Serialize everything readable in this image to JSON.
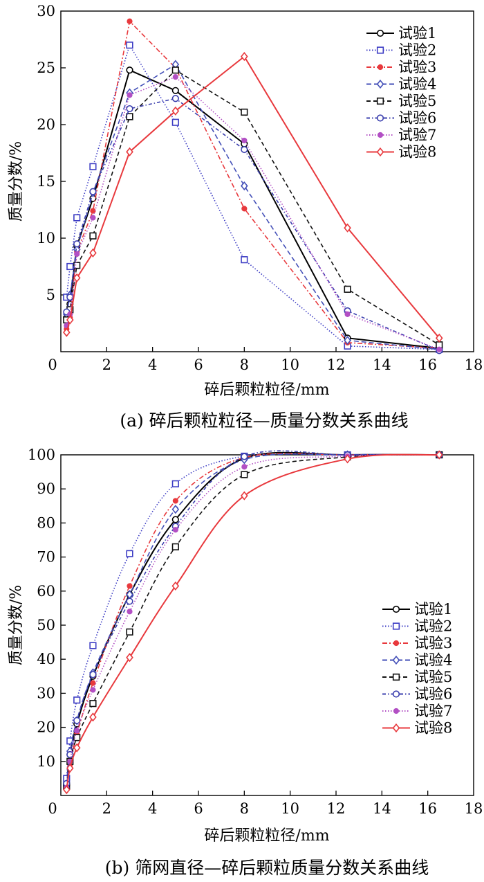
{
  "chart_data": [
    {
      "type": "line",
      "caption": "(a)  碎后颗粒粒径—质量分数关系曲线",
      "xlabel": "碎后颗粒粒径/mm",
      "ylabel": "质量分数/%",
      "xlim": [
        0,
        18
      ],
      "ylim": [
        0,
        30
      ],
      "xticks": [
        0,
        2,
        4,
        6,
        8,
        10,
        12,
        14,
        16,
        18
      ],
      "yticks": [
        5,
        10,
        15,
        20,
        25,
        30
      ],
      "legend_position": "top-right",
      "series": [
        {
          "name": "试验1",
          "color": "#000000",
          "dash": "",
          "marker": "circle",
          "x": [
            0.25,
            0.4,
            0.7,
            1.4,
            3,
            5,
            8,
            12.5,
            16.5
          ],
          "y": [
            3.0,
            4.2,
            9.3,
            13.5,
            24.8,
            23.0,
            18.3,
            1.2,
            0.3
          ]
        },
        {
          "name": "试验2",
          "color": "#3d3dc4",
          "dash": "1.5,2.5",
          "marker": "square",
          "x": [
            0.25,
            0.4,
            0.7,
            1.4,
            3,
            5,
            8,
            12.5,
            16.5
          ],
          "y": [
            4.8,
            7.5,
            11.8,
            16.3,
            27.0,
            20.2,
            8.1,
            0.5,
            0.2
          ]
        },
        {
          "name": "试验3",
          "color": "#e8393d",
          "dash": "7,3,2,3",
          "marker": "dot",
          "x": [
            0.25,
            0.4,
            0.7,
            1.4,
            3,
            5,
            8,
            12.5,
            16.5
          ],
          "y": [
            2.0,
            3.0,
            8.8,
            12.4,
            29.1,
            25.0,
            12.6,
            0.8,
            0.3
          ]
        },
        {
          "name": "试验4",
          "color": "#4450b8",
          "dash": "7,4",
          "marker": "diamond",
          "x": [
            0.25,
            0.4,
            0.7,
            1.4,
            3,
            5,
            8,
            12.5,
            16.5
          ],
          "y": [
            3.3,
            5.0,
            9.0,
            14.0,
            22.8,
            25.3,
            14.6,
            1.0,
            0.2
          ]
        },
        {
          "name": "试验5",
          "color": "#111111",
          "dash": "6,4",
          "marker": "square",
          "x": [
            0.25,
            0.4,
            0.7,
            1.4,
            3,
            5,
            8,
            12.5,
            16.5
          ],
          "y": [
            2.8,
            3.7,
            7.6,
            10.2,
            20.7,
            24.8,
            21.1,
            5.5,
            0.6
          ]
        },
        {
          "name": "试验6",
          "color": "#3b3fae",
          "dash": "5,3,1.5,3",
          "marker": "circle",
          "x": [
            0.25,
            0.4,
            0.7,
            1.4,
            3,
            5,
            8,
            12.5,
            16.5
          ],
          "y": [
            3.5,
            4.8,
            9.5,
            14.1,
            21.4,
            22.3,
            17.8,
            3.6,
            0.1
          ]
        },
        {
          "name": "试验7",
          "color": "#b24fc4",
          "dash": "1.5,2.5",
          "marker": "dot",
          "x": [
            0.25,
            0.4,
            0.7,
            1.4,
            3,
            5,
            8,
            12.5,
            16.5
          ],
          "y": [
            2.3,
            3.3,
            8.6,
            11.8,
            22.6,
            24.2,
            18.6,
            3.3,
            0.2
          ]
        },
        {
          "name": "试验8",
          "color": "#e8393d",
          "dash": "",
          "marker": "diamond",
          "x": [
            0.25,
            0.4,
            0.7,
            1.4,
            3,
            5,
            8,
            12.5,
            16.5
          ],
          "y": [
            1.7,
            2.8,
            6.5,
            8.7,
            17.6,
            21.2,
            26.0,
            10.9,
            1.2
          ]
        }
      ]
    },
    {
      "type": "line",
      "caption": "(b)  筛网直径—碎后颗粒质量分数关系曲线",
      "xlabel": "碎后颗粒粒径/mm",
      "ylabel": "质量分数/%",
      "xlim": [
        0,
        18
      ],
      "ylim": [
        0,
        100
      ],
      "xticks": [
        0,
        2,
        4,
        6,
        8,
        10,
        12,
        14,
        16,
        18
      ],
      "yticks": [
        10,
        20,
        30,
        40,
        50,
        60,
        70,
        80,
        90,
        100
      ],
      "legend_position": "bottom-right",
      "series": [
        {
          "name": "试验1",
          "color": "#000000",
          "dash": "",
          "marker": "circle",
          "x": [
            0.25,
            0.4,
            0.7,
            1.4,
            3,
            5,
            8,
            12.5,
            16.5
          ],
          "y": [
            3,
            12,
            21,
            35,
            59,
            81,
            99,
            100,
            100
          ]
        },
        {
          "name": "试验2",
          "color": "#3d3dc4",
          "dash": "1.5,2.5",
          "marker": "square",
          "x": [
            0.25,
            0.4,
            0.7,
            1.4,
            3,
            5,
            8,
            12.5,
            16.5
          ],
          "y": [
            5,
            16,
            28,
            44,
            71,
            91.5,
            99.6,
            100,
            100
          ]
        },
        {
          "name": "试验3",
          "color": "#e8393d",
          "dash": "7,3,2,3",
          "marker": "dot",
          "x": [
            0.25,
            0.4,
            0.7,
            1.4,
            3,
            5,
            8,
            12.5,
            16.5
          ],
          "y": [
            2,
            9,
            18,
            33,
            61.5,
            86.5,
            99.2,
            100,
            100
          ]
        },
        {
          "name": "试验4",
          "color": "#4450b8",
          "dash": "7,4",
          "marker": "diamond",
          "x": [
            0.25,
            0.4,
            0.7,
            1.4,
            3,
            5,
            8,
            12.5,
            16.5
          ],
          "y": [
            3.3,
            13,
            22,
            36,
            59,
            84,
            98.6,
            100,
            100
          ]
        },
        {
          "name": "试验5",
          "color": "#111111",
          "dash": "6,4",
          "marker": "square",
          "x": [
            0.25,
            0.4,
            0.7,
            1.4,
            3,
            5,
            8,
            12.5,
            16.5
          ],
          "y": [
            2.8,
            10,
            17,
            27,
            48,
            73,
            94.2,
            99.4,
            100
          ]
        },
        {
          "name": "试验6",
          "color": "#3b3fae",
          "dash": "5,3,1.5,3",
          "marker": "circle",
          "x": [
            0.25,
            0.4,
            0.7,
            1.4,
            3,
            5,
            8,
            12.5,
            16.5
          ],
          "y": [
            3.5,
            12,
            22,
            35.5,
            57,
            79,
            99.5,
            100,
            100
          ]
        },
        {
          "name": "试验7",
          "color": "#b24fc4",
          "dash": "1.5,2.5",
          "marker": "dot",
          "x": [
            0.25,
            0.4,
            0.7,
            1.4,
            3,
            5,
            8,
            12.5,
            16.5
          ],
          "y": [
            2.3,
            10,
            19,
            31,
            54,
            78,
            96.5,
            99.6,
            100
          ]
        },
        {
          "name": "试验8",
          "color": "#e8393d",
          "dash": "",
          "marker": "diamond",
          "x": [
            0.25,
            0.4,
            0.7,
            1.4,
            3,
            5,
            8,
            12.5,
            16.5
          ],
          "y": [
            1.7,
            8,
            14,
            23,
            40.5,
            61.5,
            88,
            98.8,
            100
          ]
        }
      ]
    }
  ]
}
